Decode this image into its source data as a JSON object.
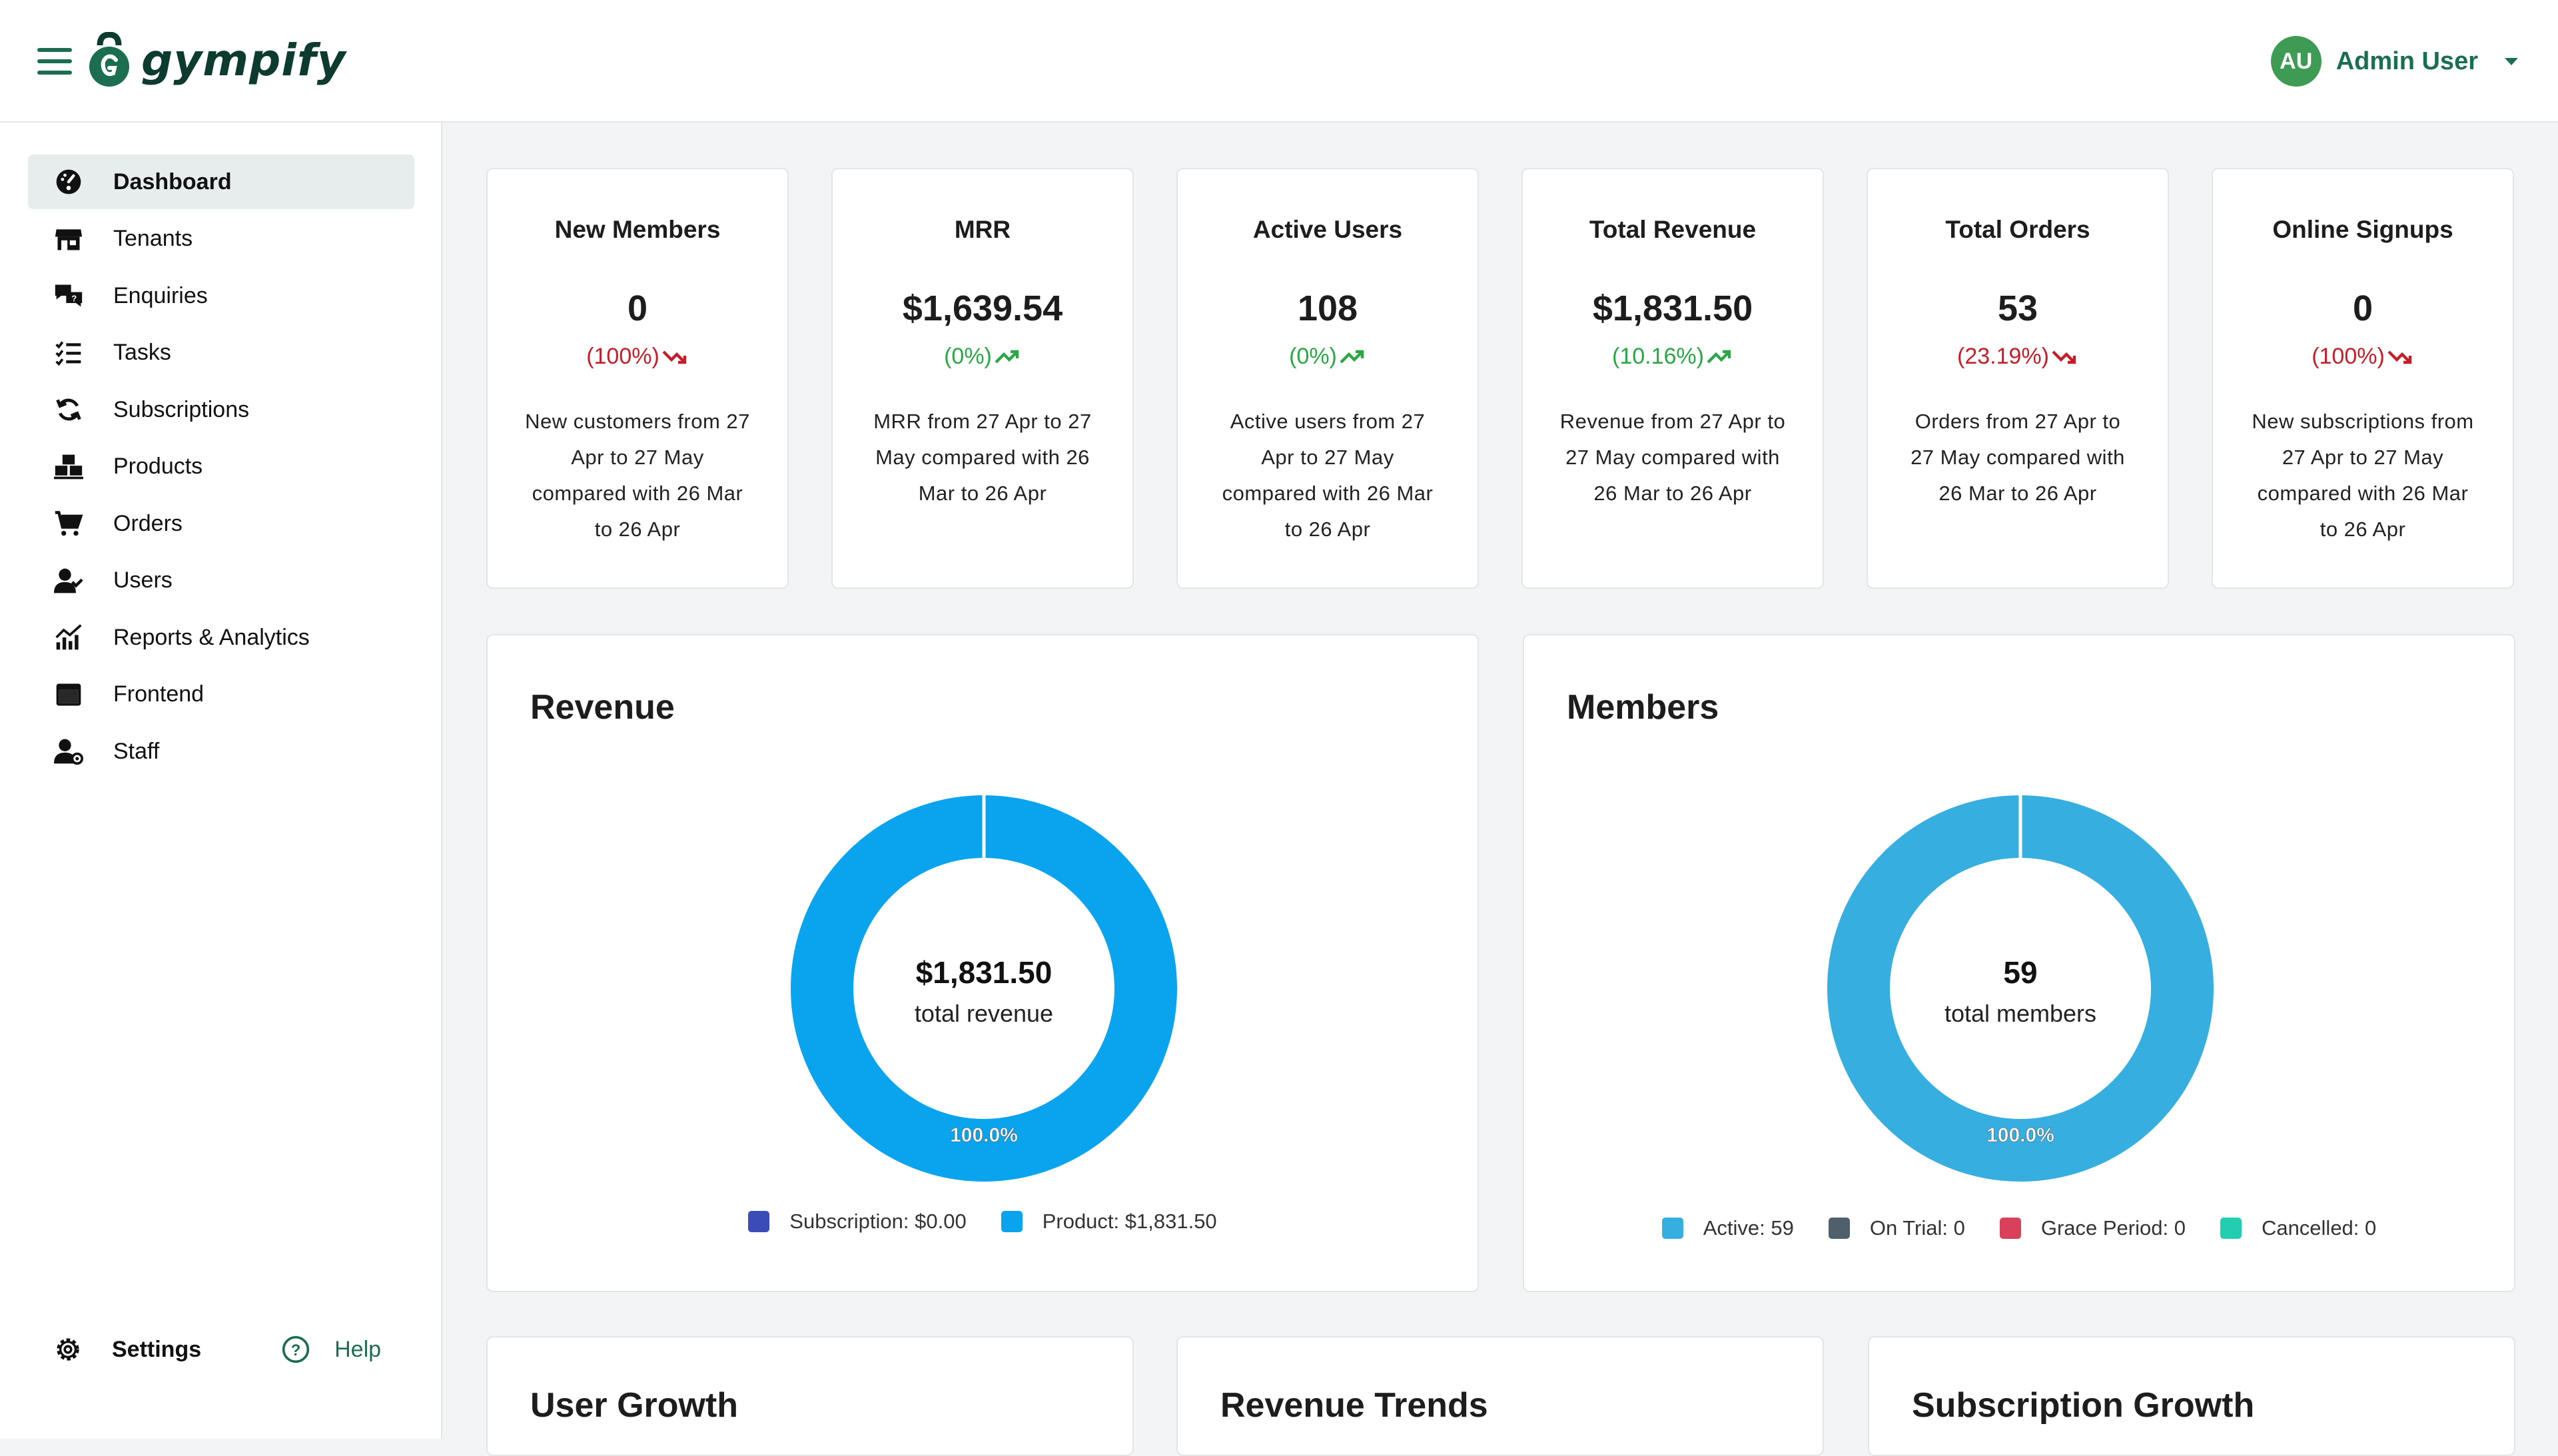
{
  "app": {
    "name": "gympify"
  },
  "header": {
    "avatar_initials": "AU",
    "user_name": "Admin User"
  },
  "sidebar": {
    "items": [
      {
        "label": "Dashboard",
        "icon": "dashboard-icon",
        "active": true
      },
      {
        "label": "Tenants",
        "icon": "store-icon"
      },
      {
        "label": "Enquiries",
        "icon": "chat-icon"
      },
      {
        "label": "Tasks",
        "icon": "checklist-icon"
      },
      {
        "label": "Subscriptions",
        "icon": "refresh-icon"
      },
      {
        "label": "Products",
        "icon": "boxes-icon"
      },
      {
        "label": "Orders",
        "icon": "cart-icon"
      },
      {
        "label": "Users",
        "icon": "users-icon"
      },
      {
        "label": "Reports & Analytics",
        "icon": "chart-icon"
      },
      {
        "label": "Frontend",
        "icon": "window-icon"
      },
      {
        "label": "Staff",
        "icon": "staff-icon"
      }
    ],
    "settings_label": "Settings",
    "help_label": "Help"
  },
  "stats": [
    {
      "title": "New Members",
      "value": "0",
      "change": "(100%)",
      "trend": "down",
      "description": "New customers from 27 Apr to 27 May compared with 26 Mar to 26 Apr"
    },
    {
      "title": "MRR",
      "value": "$1,639.54",
      "change": "(0%)",
      "trend": "up",
      "description": "MRR from 27 Apr to 27 May compared with 26 Mar to 26 Apr"
    },
    {
      "title": "Active Users",
      "value": "108",
      "change": "(0%)",
      "trend": "up",
      "description": "Active users from 27 Apr to 27 May compared with 26 Mar to 26 Apr"
    },
    {
      "title": "Total Revenue",
      "value": "$1,831.50",
      "change": "(10.16%)",
      "trend": "up",
      "description": "Revenue from 27 Apr to 27 May compared with 26 Mar to 26 Apr"
    },
    {
      "title": "Total Orders",
      "value": "53",
      "change": "(23.19%)",
      "trend": "down",
      "description": "Orders from 27 Apr to 27 May compared with 26 Mar to 26 Apr"
    },
    {
      "title": "Online Signups",
      "value": "0",
      "change": "(100%)",
      "trend": "down",
      "description": "New subscriptions from 27 Apr to 27 May compared with 26 Mar to 26 Apr"
    }
  ],
  "revenue": {
    "title": "Revenue",
    "center_value": "$1,831.50",
    "center_label": "total revenue",
    "slice_label": "100.0%",
    "legend": [
      {
        "label": "Subscription: $0.00",
        "color": "#3b4cb8"
      },
      {
        "label": "Product: $1,831.50",
        "color": "#0aa3ee"
      }
    ]
  },
  "members": {
    "title": "Members",
    "center_value": "59",
    "center_label": "total members",
    "slice_label": "100.0%",
    "legend": [
      {
        "label": "Active: 59",
        "color": "#36aee0"
      },
      {
        "label": "On Trial: 0",
        "color": "#4f5f6b"
      },
      {
        "label": "Grace Period: 0",
        "color": "#d9415a"
      },
      {
        "label": "Cancelled: 0",
        "color": "#22cdb0"
      }
    ]
  },
  "bottom_cards": [
    {
      "title": "User Growth"
    },
    {
      "title": "Revenue Trends"
    },
    {
      "title": "Subscription Growth"
    }
  ],
  "chart_data": [
    {
      "type": "pie",
      "title": "Revenue",
      "categories": [
        "Subscription",
        "Product"
      ],
      "values": [
        0.0,
        1831.5
      ],
      "colors": [
        "#3b4cb8",
        "#0aa3ee"
      ],
      "slice_labels": [
        "",
        "100.0%"
      ],
      "legend_position": "bottom"
    },
    {
      "type": "pie",
      "title": "Members",
      "categories": [
        "Active",
        "On Trial",
        "Grace Period",
        "Cancelled"
      ],
      "values": [
        59,
        0,
        0,
        0
      ],
      "colors": [
        "#36aee0",
        "#4f5f6b",
        "#d9415a",
        "#22cdb0"
      ],
      "slice_labels": [
        "100.0%",
        "",
        "",
        ""
      ],
      "legend_position": "bottom"
    }
  ]
}
